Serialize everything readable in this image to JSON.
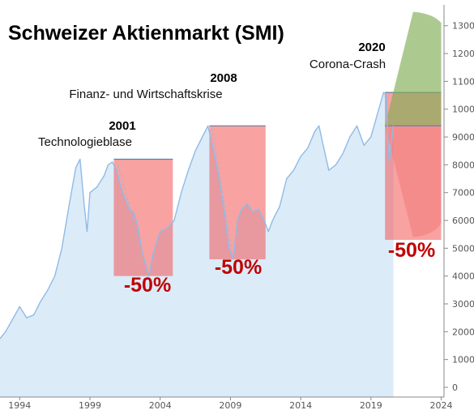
{
  "chart_data": {
    "type": "area",
    "title": "Schweizer Aktienmarkt (SMI)",
    "xlabel": "",
    "ylabel": "",
    "xlim": [
      1992.6,
      2024.2
    ],
    "ylim": [
      -350,
      13750
    ],
    "y_ticks": [
      0,
      1000,
      2000,
      3000,
      4000,
      5000,
      6000,
      7000,
      8000,
      9000,
      10000,
      11000,
      12000,
      13000
    ],
    "x_ticks": [
      1994,
      1999,
      2004,
      2009,
      2014,
      2019,
      2024
    ],
    "y_axis_position": "right",
    "grid": false,
    "legend": "none",
    "colors": {
      "area_fill": "#dcebf8",
      "line": "#8fbbe6",
      "crash_red": "#f25656",
      "overlap": "#d9c2d2",
      "projection_green": "#7fae55",
      "projection_red": "#f27a7a",
      "drop_label": "#c00000"
    },
    "series": [
      {
        "x": [
          1992.6,
          1993.0,
          1993.5,
          1994.0,
          1994.5,
          1995.0,
          1995.5,
          1996.0,
          1996.5,
          1997.0,
          1997.5,
          1998.0,
          1998.3,
          1998.6,
          1998.8,
          1999.0,
          1999.5,
          2000.0,
          2000.3,
          2000.6,
          2000.9,
          2001.2,
          2001.5,
          2001.8,
          2002.1,
          2002.4,
          2002.7,
          2003.0,
          2003.2,
          2003.5,
          2004.0,
          2004.5,
          2005.0,
          2005.5,
          2006.0,
          2006.5,
          2007.0,
          2007.4,
          2007.8,
          2008.2,
          2008.6,
          2008.9,
          2009.2,
          2009.5,
          2009.8,
          2010.2,
          2010.6,
          2011.0,
          2011.4,
          2011.7,
          2012.0,
          2012.5,
          2013.0,
          2013.5,
          2014.0,
          2014.5,
          2015.0,
          2015.3,
          2015.6,
          2016.0,
          2016.5,
          2017.0,
          2017.5,
          2018.0,
          2018.5,
          2019.0,
          2019.5,
          2019.9,
          2020.1,
          2020.2,
          2020.3,
          2020.6
        ],
        "y": [
          1750,
          2000,
          2450,
          2900,
          2500,
          2600,
          3100,
          3500,
          4000,
          5000,
          6500,
          7900,
          8200,
          6500,
          5600,
          7000,
          7200,
          7600,
          8000,
          8100,
          7800,
          7200,
          6800,
          6400,
          6300,
          5800,
          4900,
          4300,
          4000,
          4800,
          5600,
          5700,
          6000,
          7000,
          7800,
          8500,
          9000,
          9400,
          8500,
          7500,
          6200,
          5000,
          4600,
          6000,
          6400,
          6600,
          6300,
          6400,
          6000,
          5600,
          6000,
          6500,
          7500,
          7800,
          8300,
          8600,
          9200,
          9400,
          8700,
          7800,
          8000,
          8400,
          9000,
          9400,
          8700,
          9000,
          9900,
          10600,
          10500,
          9000,
          8100,
          9400
        ]
      }
    ],
    "crash_boxes": [
      {
        "x_start": 2000.7,
        "x_end": 2004.9,
        "y_top": 8200,
        "y_bottom": 4000
      },
      {
        "x_start": 2007.5,
        "x_end": 2011.5,
        "y_top": 9400,
        "y_bottom": 4600
      },
      {
        "x_start": 2020.0,
        "x_end": 2024.0,
        "y_top": 10600,
        "y_bottom": 5300
      }
    ],
    "projection": {
      "x_start": 2020.0,
      "y_start": 9400,
      "upper_path": [
        [
          2022.0,
          13500
        ],
        [
          2024.0,
          13100
        ]
      ],
      "lower_path": [
        [
          2022.0,
          5400
        ],
        [
          2024.0,
          5900
        ]
      ]
    },
    "annotations": [
      {
        "year": "2001",
        "text": "Technologieblase",
        "drop": "-50%"
      },
      {
        "year": "2008",
        "text": "Finanz- und Wirtschaftskrise",
        "drop": "-50%"
      },
      {
        "year": "2020",
        "text": "Corona-Crash",
        "drop": "-50%"
      }
    ]
  }
}
